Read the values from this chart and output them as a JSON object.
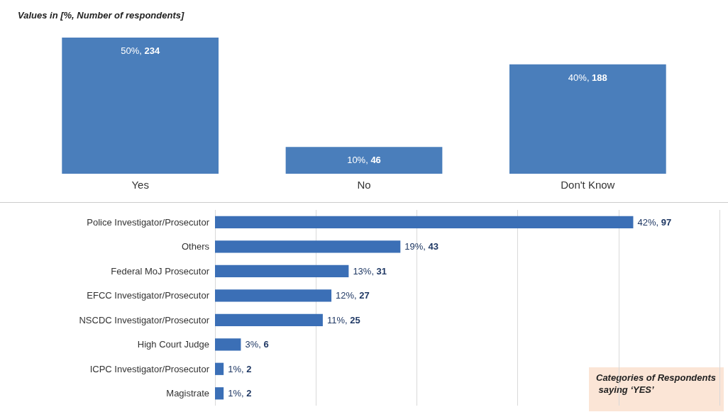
{
  "chart_data": [
    {
      "type": "bar",
      "title": "Values in [%, Number of respondents]",
      "categories": [
        "Yes",
        "No",
        "Don't Know"
      ],
      "values": [
        234,
        46,
        188
      ],
      "value_labels": [
        "50%, 234",
        "10%, 46",
        "40%, 188"
      ],
      "color": "#4a7ebb",
      "grid": false,
      "tick_labels": "x"
    },
    {
      "type": "bar",
      "orientation": "horizontal",
      "categories": [
        "Police Investigator/Prosecutor",
        "Others",
        "Federal MoJ Prosecutor",
        "EFCC Investigator/Prosecutor",
        "NSCDC Investigator/Prosecutor",
        "High Court Judge",
        "ICPC Investigator/Prosecutor",
        "Magistrate"
      ],
      "values": [
        97,
        43,
        31,
        27,
        25,
        6,
        2,
        2
      ],
      "value_labels": [
        "42%, 97",
        "19%, 43",
        "13%, 31",
        "12%, 27",
        "11%, 25",
        "3%, 6",
        "1%, 2",
        "1%, 2"
      ],
      "color": "#3b6fb6",
      "xlim": [
        0,
        117
      ],
      "xticks": [
        {
          "value": 0,
          "label": null
        },
        {
          "value": 23.4,
          "label": null
        },
        {
          "value": 46.8,
          "label": null
        },
        {
          "value": 70.2,
          "label": null
        },
        {
          "value": 93.6,
          "label": null
        },
        {
          "value": 117,
          "label": null
        }
      ],
      "grid": "x",
      "tick_labels": "y",
      "annotations": [
        "Categories of Respondents saying ‘YES’"
      ]
    }
  ]
}
